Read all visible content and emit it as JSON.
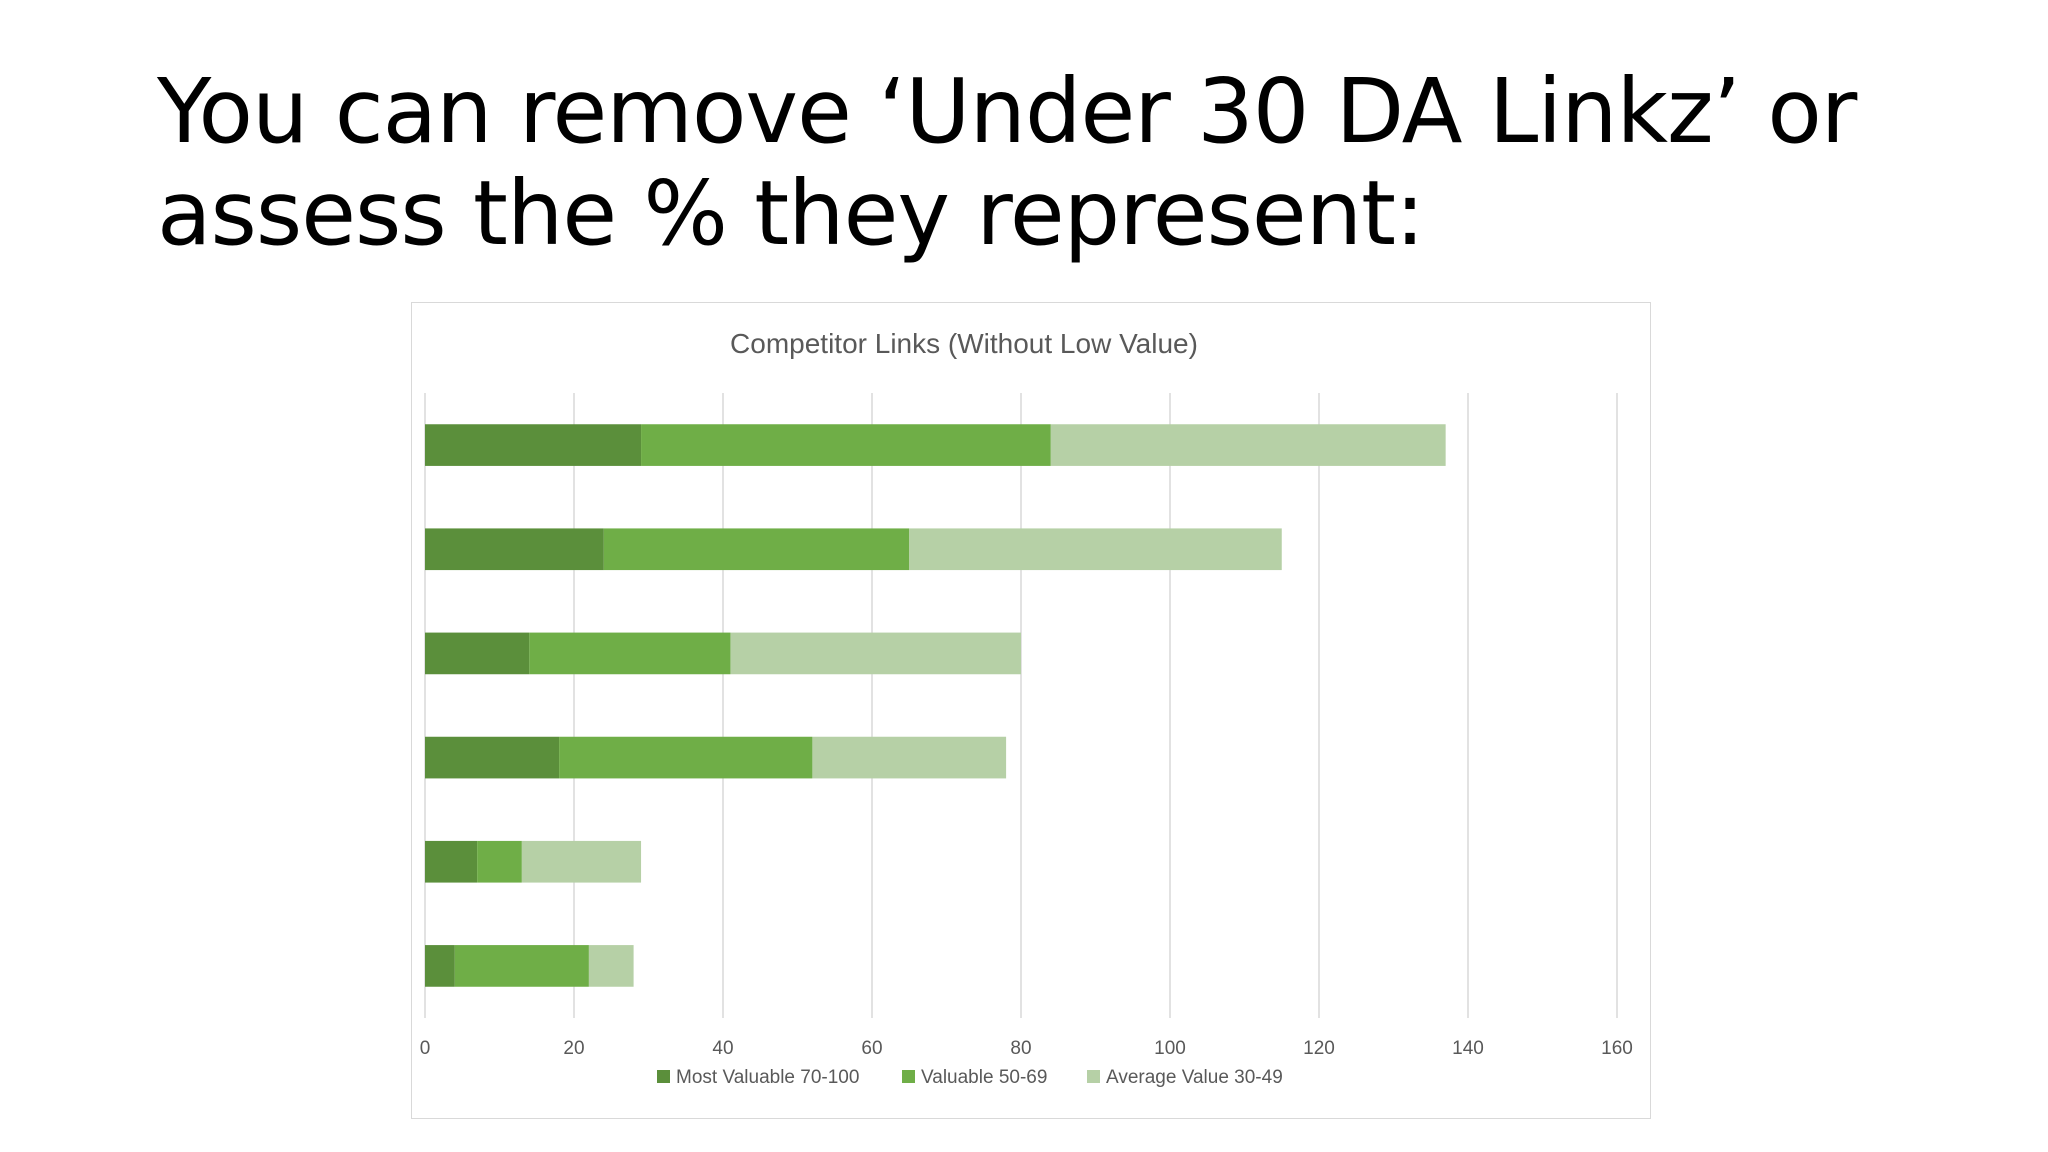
{
  "slide": {
    "title_line1": "You can remove ‘Under 30 DA Linkz’ or",
    "title_line2": "assess the % they represent:"
  },
  "chart_data": {
    "type": "bar",
    "orientation": "horizontal",
    "stacked": true,
    "title": "Competitor Links (Without Low Value)",
    "xlabel": "",
    "ylabel": "",
    "xlim": [
      0,
      160
    ],
    "xticks": [
      0,
      20,
      40,
      60,
      80,
      100,
      120,
      140,
      160
    ],
    "grid": true,
    "legend_position": "bottom",
    "categories": [
      "",
      "",
      "",
      "",
      "",
      ""
    ],
    "series": [
      {
        "name": "Most Valuable 70-100",
        "color": "#5b8f3b",
        "values": [
          29,
          24,
          14,
          18,
          7,
          4
        ]
      },
      {
        "name": "Valuable 50-69",
        "color": "#6fae47",
        "values": [
          55,
          41,
          27,
          34,
          6,
          18
        ]
      },
      {
        "name": "Average Value 30-49",
        "color": "#b6d0a6",
        "values": [
          53,
          50,
          39,
          26,
          16,
          6
        ]
      }
    ]
  }
}
